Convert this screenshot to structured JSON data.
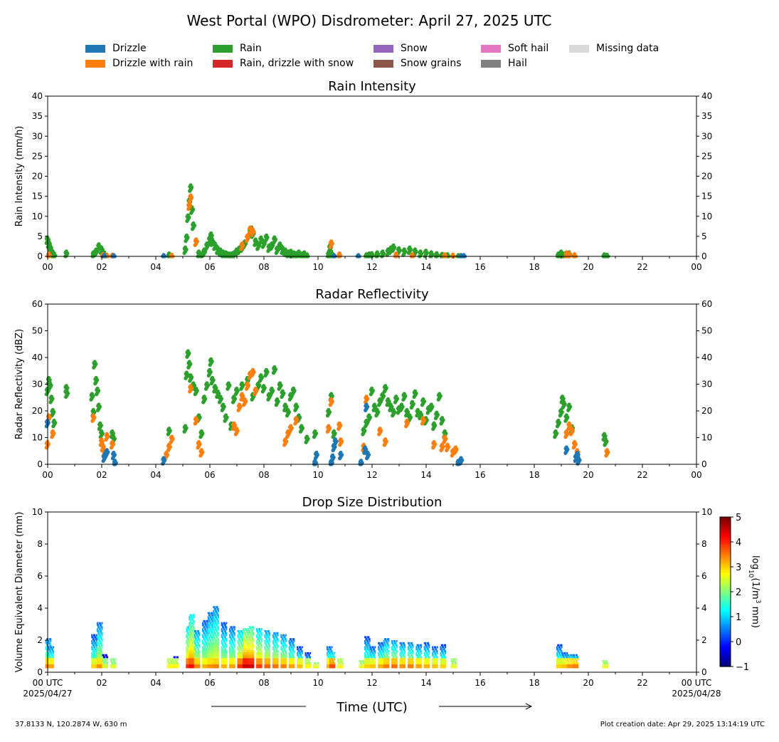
{
  "title": "West Portal (WPO) Disdrometer: April 27, 2025 UTC",
  "legend": [
    {
      "label": "Drizzle",
      "color": "#1f77b4"
    },
    {
      "label": "Drizzle with rain",
      "color": "#ff7f0e"
    },
    {
      "label": "Rain",
      "color": "#2ca02c"
    },
    {
      "label": "Rain, drizzle with snow",
      "color": "#d62728"
    },
    {
      "label": "Snow",
      "color": "#9467bd"
    },
    {
      "label": "Snow grains",
      "color": "#8c564b"
    },
    {
      "label": "Soft hail",
      "color": "#e377c2"
    },
    {
      "label": "Hail",
      "color": "#7f7f7f"
    },
    {
      "label": "Missing data",
      "color": "#d9d9d9"
    }
  ],
  "x_tick_labels": [
    "00",
    "02",
    "04",
    "06",
    "08",
    "10",
    "12",
    "14",
    "16",
    "18",
    "20",
    "22",
    "00"
  ],
  "x_label_start": {
    "line1": "00 UTC",
    "line2": "2025/04/27"
  },
  "x_label_end": {
    "line1": "00 UTC",
    "line2": "2025/04/28"
  },
  "xlabel": "Time (UTC)",
  "footer_left": "37.8133 N, 120.2874 W, 630 m",
  "footer_right": "Plot creation date: Apr 29, 2025 13:14:19 UTC",
  "chart_data": [
    {
      "type": "scatter",
      "title": "Rain Intensity",
      "ylabel": "Rain Intensity (mm/h)",
      "xlim": [
        0,
        24
      ],
      "ylim": [
        0,
        40
      ],
      "yticks": [
        0,
        5,
        10,
        15,
        20,
        25,
        30,
        35,
        40
      ],
      "series": [
        {
          "name": "Rain",
          "color": "#2ca02c",
          "x": [
            0.0,
            0.05,
            0.1,
            0.15,
            0.2,
            0.25,
            0.7,
            1.7,
            1.8,
            1.9,
            2.0,
            2.1,
            4.5,
            5.1,
            5.15,
            5.2,
            5.25,
            5.3,
            5.35,
            5.4,
            5.5,
            5.6,
            5.7,
            5.8,
            5.9,
            6.0,
            6.05,
            6.1,
            6.2,
            6.3,
            6.4,
            6.5,
            6.6,
            6.7,
            6.8,
            6.9,
            7.0,
            7.1,
            7.2,
            7.3,
            7.4,
            7.5,
            7.55,
            7.6,
            7.7,
            7.8,
            7.9,
            8.0,
            8.1,
            8.2,
            8.3,
            8.4,
            8.5,
            8.6,
            8.7,
            8.8,
            8.9,
            9.0,
            9.1,
            9.2,
            9.3,
            9.4,
            9.5,
            9.6,
            10.4,
            10.45,
            10.5,
            11.8,
            11.9,
            12.0,
            12.2,
            12.4,
            12.6,
            12.7,
            12.8,
            13.0,
            13.2,
            13.4,
            13.6,
            13.8,
            14.0,
            14.2,
            14.4,
            14.6,
            14.8,
            15.0,
            15.2,
            18.9,
            19.0,
            19.1,
            19.3,
            19.5,
            20.6,
            20.7
          ],
          "values": [
            4.5,
            3.5,
            2.5,
            1.5,
            1.0,
            0.5,
            1.0,
            0.8,
            1.5,
            2.8,
            2.0,
            0.8,
            0.5,
            2.0,
            5.0,
            10.0,
            14.0,
            17.5,
            12.0,
            8.0,
            4.0,
            1.0,
            0.5,
            1.5,
            3.0,
            4.5,
            5.5,
            4.0,
            3.0,
            2.0,
            1.5,
            1.0,
            0.8,
            0.5,
            0.5,
            0.8,
            1.5,
            2.0,
            2.5,
            3.5,
            5.0,
            6.5,
            7.0,
            6.0,
            4.0,
            3.0,
            4.5,
            3.5,
            5.0,
            2.5,
            3.0,
            4.5,
            2.0,
            3.0,
            2.0,
            1.5,
            1.0,
            1.2,
            0.8,
            0.6,
            1.0,
            0.5,
            0.8,
            0.3,
            0.8,
            2.5,
            1.0,
            0.3,
            0.5,
            0.6,
            0.8,
            1.0,
            1.5,
            2.0,
            2.5,
            1.8,
            1.5,
            2.0,
            1.5,
            1.0,
            1.2,
            0.8,
            0.6,
            0.4,
            0.3,
            0.2,
            0.1,
            0.5,
            1.0,
            0.5,
            0.8,
            0.3,
            0.3,
            0.2
          ]
        },
        {
          "name": "Drizzle with rain",
          "color": "#ff7f0e",
          "x": [
            0.05,
            2.05,
            2.2,
            2.4,
            4.6,
            5.25,
            5.3,
            5.5,
            7.2,
            7.4,
            7.5,
            7.6,
            10.5,
            10.8,
            12.9,
            13.5,
            14.7,
            15.0,
            19.2,
            19.3,
            19.5
          ],
          "values": [
            0.5,
            0.3,
            0.2,
            0.2,
            0.2,
            13.0,
            15.0,
            4.0,
            3.0,
            5.0,
            7.0,
            6.5,
            3.5,
            0.5,
            0.5,
            0.3,
            0.3,
            0.2,
            0.8,
            0.6,
            0.3
          ]
        },
        {
          "name": "Drizzle",
          "color": "#1f77b4",
          "x": [
            2.1,
            2.45,
            4.3,
            10.6,
            11.5,
            15.3,
            15.4
          ],
          "values": [
            0.1,
            0.1,
            0.1,
            0.1,
            0.1,
            0.1,
            0.1
          ]
        }
      ]
    },
    {
      "type": "scatter",
      "title": "Radar Reflectivity",
      "ylabel": "Radar Reflectivity (dBZ)",
      "xlim": [
        0,
        24
      ],
      "ylim": [
        0,
        60
      ],
      "yticks": [
        0,
        10,
        20,
        30,
        40,
        50,
        60
      ],
      "series": [
        {
          "name": "Rain",
          "color": "#2ca02c",
          "x": [
            0.0,
            0.05,
            0.1,
            0.15,
            0.2,
            0.25,
            0.7,
            0.72,
            1.65,
            1.7,
            1.75,
            1.8,
            1.85,
            1.9,
            1.95,
            2.0,
            2.4,
            2.45,
            4.5,
            5.1,
            5.15,
            5.2,
            5.25,
            5.3,
            5.4,
            5.5,
            5.6,
            5.7,
            5.8,
            5.9,
            6.0,
            6.05,
            6.1,
            6.2,
            6.3,
            6.4,
            6.5,
            6.6,
            6.7,
            6.8,
            6.9,
            7.0,
            7.2,
            7.4,
            7.6,
            7.8,
            7.9,
            8.0,
            8.1,
            8.2,
            8.3,
            8.4,
            8.5,
            8.6,
            8.7,
            8.8,
            8.9,
            9.0,
            9.1,
            9.2,
            9.3,
            9.4,
            9.6,
            9.9,
            10.4,
            10.5,
            10.6,
            11.7,
            11.8,
            11.9,
            12.0,
            12.1,
            12.2,
            12.3,
            12.4,
            12.5,
            12.6,
            12.7,
            12.8,
            12.9,
            13.0,
            13.1,
            13.2,
            13.3,
            13.4,
            13.5,
            13.6,
            13.7,
            13.8,
            13.9,
            14.0,
            14.1,
            14.2,
            14.3,
            14.4,
            14.5,
            14.6,
            14.7,
            18.8,
            18.9,
            19.0,
            19.05,
            19.1,
            19.2,
            19.3,
            19.4,
            20.6,
            20.65
          ],
          "values": [
            28,
            32,
            30,
            25,
            20,
            16,
            29,
            27,
            26,
            20,
            38,
            32,
            28,
            22,
            15,
            12,
            12,
            10,
            13,
            14,
            34,
            42,
            38,
            33,
            30,
            28,
            18,
            12,
            25,
            30,
            35,
            39,
            32,
            29,
            27,
            25,
            22,
            18,
            30,
            15,
            25,
            28,
            30,
            32,
            26,
            30,
            33,
            29,
            35,
            26,
            28,
            36,
            24,
            30,
            27,
            22,
            20,
            26,
            28,
            22,
            18,
            14,
            10,
            12,
            20,
            26,
            12,
            13,
            16,
            18,
            28,
            22,
            20,
            24,
            26,
            29,
            24,
            22,
            20,
            25,
            21,
            22,
            26,
            20,
            18,
            23,
            27,
            20,
            19,
            24,
            17,
            21,
            22,
            15,
            19,
            26,
            17,
            12,
            12,
            16,
            20,
            25,
            23,
            18,
            22,
            14,
            11,
            9
          ]
        },
        {
          "name": "Drizzle with rain",
          "color": "#ff7f0e",
          "x": [
            0.0,
            0.05,
            0.2,
            1.7,
            2.0,
            2.05,
            2.1,
            2.2,
            2.4,
            4.4,
            4.5,
            4.6,
            5.3,
            5.5,
            5.6,
            5.7,
            6.9,
            7.0,
            7.1,
            7.2,
            7.3,
            7.4,
            7.5,
            7.6,
            7.7,
            8.8,
            8.9,
            9.0,
            9.2,
            10.4,
            10.5,
            10.8,
            10.85,
            11.7,
            11.8,
            12.3,
            12.5,
            13.3,
            13.9,
            14.3,
            14.6,
            14.7,
            14.8,
            15.0,
            15.1,
            19.2,
            19.3,
            19.4,
            19.5,
            19.6,
            20.7
          ],
          "values": [
            8,
            18,
            12,
            18,
            9,
            7,
            5,
            11,
            8,
            4,
            7,
            10,
            29,
            17,
            8,
            5,
            15,
            13,
            22,
            26,
            24,
            30,
            34,
            35,
            28,
            9,
            12,
            14,
            17,
            14,
            24,
            15,
            9,
            7,
            25,
            13,
            9,
            16,
            17,
            8,
            7,
            10,
            7,
            5,
            6,
            12,
            15,
            13,
            8,
            5,
            5
          ]
        },
        {
          "name": "Drizzle",
          "color": "#1f77b4",
          "x": [
            0.0,
            2.1,
            2.15,
            2.2,
            2.45,
            2.5,
            4.3,
            9.9,
            9.95,
            10.5,
            10.55,
            10.6,
            10.65,
            10.85,
            11.6,
            11.75,
            11.8,
            11.85,
            15.2,
            15.3,
            19.2,
            19.55,
            19.6,
            19.65
          ],
          "values": [
            16,
            3,
            4,
            5,
            4,
            1,
            2,
            1,
            4,
            1,
            3,
            7,
            9,
            4,
            1,
            6,
            22,
            4,
            1,
            2,
            6,
            3,
            4,
            2
          ]
        }
      ]
    },
    {
      "type": "heatmap",
      "title": "Drop Size Distribution",
      "ylabel": "Volume Equivalent Diameter (mm)",
      "colorbar_label": "log10(1/m3 mm)",
      "colorbar_ticks": [
        -1,
        0,
        1,
        2,
        3,
        4,
        5
      ],
      "colorbar_range": [
        -1,
        5
      ],
      "xlim": [
        0,
        24
      ],
      "ylim": [
        0,
        10
      ],
      "yticks": [
        0,
        2,
        4,
        6,
        8,
        10
      ],
      "columns": [
        {
          "x": 0.0,
          "top": 2.0,
          "peak": 3.5
        },
        {
          "x": 0.1,
          "top": 1.6,
          "peak": 3.3
        },
        {
          "x": 1.7,
          "top": 2.3,
          "peak": 3.0
        },
        {
          "x": 1.9,
          "top": 3.0,
          "peak": 3.4
        },
        {
          "x": 2.1,
          "top": 1.0,
          "peak": 2.5
        },
        {
          "x": 2.4,
          "top": 0.8,
          "peak": 2.5
        },
        {
          "x": 4.5,
          "top": 0.8,
          "peak": 2.8
        },
        {
          "x": 4.7,
          "top": 0.9,
          "peak": 2.8
        },
        {
          "x": 5.2,
          "top": 2.8,
          "peak": 4.0
        },
        {
          "x": 5.3,
          "top": 3.5,
          "peak": 4.2
        },
        {
          "x": 5.5,
          "top": 2.6,
          "peak": 3.5
        },
        {
          "x": 5.8,
          "top": 3.2,
          "peak": 3.2
        },
        {
          "x": 6.0,
          "top": 3.7,
          "peak": 3.4
        },
        {
          "x": 6.2,
          "top": 4.0,
          "peak": 3.5
        },
        {
          "x": 6.5,
          "top": 3.0,
          "peak": 3.2
        },
        {
          "x": 6.8,
          "top": 2.8,
          "peak": 3.3
        },
        {
          "x": 7.1,
          "top": 2.5,
          "peak": 4.0
        },
        {
          "x": 7.3,
          "top": 2.7,
          "peak": 4.6
        },
        {
          "x": 7.5,
          "top": 2.8,
          "peak": 4.5
        },
        {
          "x": 7.8,
          "top": 2.7,
          "peak": 3.9
        },
        {
          "x": 8.1,
          "top": 2.5,
          "peak": 3.7
        },
        {
          "x": 8.4,
          "top": 2.4,
          "peak": 3.6
        },
        {
          "x": 8.7,
          "top": 2.3,
          "peak": 3.5
        },
        {
          "x": 9.0,
          "top": 2.0,
          "peak": 3.3
        },
        {
          "x": 9.3,
          "top": 1.5,
          "peak": 3.1
        },
        {
          "x": 9.6,
          "top": 1.2,
          "peak": 2.8
        },
        {
          "x": 9.9,
          "top": 0.6,
          "peak": 2.6
        },
        {
          "x": 10.4,
          "top": 1.6,
          "peak": 3.2
        },
        {
          "x": 10.5,
          "top": 1.2,
          "peak": 3.8
        },
        {
          "x": 10.8,
          "top": 0.8,
          "peak": 2.8
        },
        {
          "x": 11.6,
          "top": 0.7,
          "peak": 2.6
        },
        {
          "x": 11.8,
          "top": 2.2,
          "peak": 3.0
        },
        {
          "x": 12.0,
          "top": 1.6,
          "peak": 3.1
        },
        {
          "x": 12.3,
          "top": 1.8,
          "peak": 3.2
        },
        {
          "x": 12.5,
          "top": 2.0,
          "peak": 3.5
        },
        {
          "x": 12.8,
          "top": 1.9,
          "peak": 3.6
        },
        {
          "x": 13.1,
          "top": 1.8,
          "peak": 3.4
        },
        {
          "x": 13.4,
          "top": 1.8,
          "peak": 3.5
        },
        {
          "x": 13.7,
          "top": 1.7,
          "peak": 3.3
        },
        {
          "x": 14.0,
          "top": 1.8,
          "peak": 3.2
        },
        {
          "x": 14.3,
          "top": 1.6,
          "peak": 3.1
        },
        {
          "x": 14.6,
          "top": 1.7,
          "peak": 3.0
        },
        {
          "x": 15.0,
          "top": 0.8,
          "peak": 2.6
        },
        {
          "x": 18.9,
          "top": 1.7,
          "peak": 3.0
        },
        {
          "x": 19.1,
          "top": 1.2,
          "peak": 3.1
        },
        {
          "x": 19.3,
          "top": 1.1,
          "peak": 3.4
        },
        {
          "x": 19.5,
          "top": 1.0,
          "peak": 3.5
        },
        {
          "x": 20.6,
          "top": 0.7,
          "peak": 2.6
        }
      ]
    }
  ]
}
